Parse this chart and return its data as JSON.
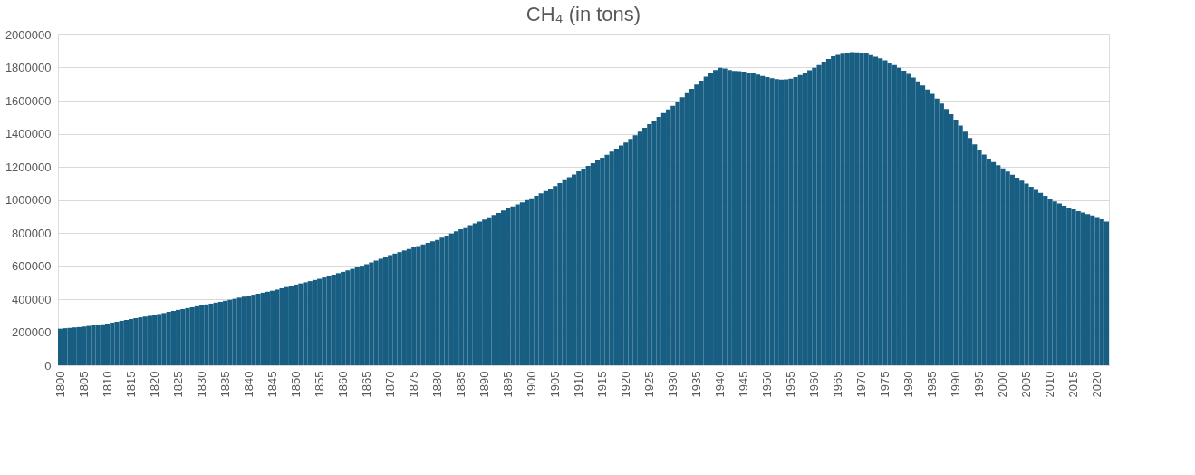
{
  "chart_data": {
    "type": "bar",
    "title": "CH₄ (in tons)",
    "categories": [
      "1800",
      null,
      null,
      null,
      null,
      "1805",
      null,
      null,
      null,
      null,
      "1810",
      null,
      null,
      null,
      null,
      "1815",
      null,
      null,
      null,
      null,
      "1820",
      null,
      null,
      null,
      null,
      "1825",
      null,
      null,
      null,
      null,
      "1830",
      null,
      null,
      null,
      null,
      "1835",
      null,
      null,
      null,
      null,
      "1840",
      null,
      null,
      null,
      null,
      "1845",
      null,
      null,
      null,
      null,
      "1850",
      null,
      null,
      null,
      null,
      "1855",
      null,
      null,
      null,
      null,
      "1860",
      null,
      null,
      null,
      null,
      "1865",
      null,
      null,
      null,
      null,
      "1870",
      null,
      null,
      null,
      null,
      "1875",
      null,
      null,
      null,
      null,
      "1880",
      null,
      null,
      null,
      null,
      "1885",
      null,
      null,
      null,
      null,
      "1890",
      null,
      null,
      null,
      null,
      "1895",
      null,
      null,
      null,
      null,
      "1900",
      null,
      null,
      null,
      null,
      "1905",
      null,
      null,
      null,
      null,
      "1910",
      null,
      null,
      null,
      null,
      "1915",
      null,
      null,
      null,
      null,
      "1920",
      null,
      null,
      null,
      null,
      "1925",
      null,
      null,
      null,
      null,
      "1930",
      null,
      null,
      null,
      null,
      "1935",
      null,
      null,
      null,
      null,
      "1940",
      null,
      null,
      null,
      null,
      "1945",
      null,
      null,
      null,
      null,
      "1950",
      null,
      null,
      null,
      null,
      "1955",
      null,
      null,
      null,
      null,
      "1960",
      null,
      null,
      null,
      null,
      "1965",
      null,
      null,
      null,
      null,
      "1970",
      null,
      null,
      null,
      null,
      "1975",
      null,
      null,
      null,
      null,
      "1980",
      null,
      null,
      null,
      null,
      "1985",
      null,
      null,
      null,
      null,
      "1990",
      null,
      null,
      null,
      null,
      "1995",
      null,
      null,
      null,
      null,
      "2000",
      null,
      null,
      null,
      null,
      "2005",
      null,
      null,
      null,
      null,
      "2010",
      null,
      null,
      null,
      null,
      "2015",
      null,
      null,
      null,
      null,
      "2020",
      null,
      null
    ],
    "values": [
      221000,
      224000,
      226000,
      229000,
      231000,
      234000,
      238000,
      241000,
      245000,
      248000,
      252000,
      258000,
      263000,
      269000,
      274000,
      280000,
      285000,
      290000,
      294000,
      299000,
      304000,
      310000,
      316000,
      323000,
      329000,
      335000,
      340000,
      346000,
      351000,
      357000,
      362000,
      368000,
      373000,
      379000,
      384000,
      390000,
      396000,
      402000,
      409000,
      415000,
      421000,
      427000,
      433000,
      439000,
      445000,
      451000,
      458000,
      466000,
      473000,
      481000,
      488000,
      495000,
      502000,
      509000,
      516000,
      523000,
      531000,
      540000,
      548000,
      557000,
      565000,
      574000,
      583000,
      593000,
      602000,
      611000,
      622000,
      633000,
      644000,
      655000,
      666000,
      675000,
      684000,
      694000,
      703000,
      712000,
      721000,
      730000,
      740000,
      749000,
      758000,
      771000,
      784000,
      796000,
      809000,
      822000,
      834000,
      846000,
      857000,
      869000,
      881000,
      894000,
      908000,
      921000,
      935000,
      948000,
      960000,
      973000,
      985000,
      998000,
      1010000,
      1025000,
      1040000,
      1054000,
      1069000,
      1084000,
      1102000,
      1119000,
      1137000,
      1154000,
      1172000,
      1189000,
      1205000,
      1222000,
      1238000,
      1255000,
      1273000,
      1292000,
      1310000,
      1329000,
      1347000,
      1369000,
      1391000,
      1413000,
      1435000,
      1457000,
      1479000,
      1501000,
      1524000,
      1546000,
      1568000,
      1594000,
      1620000,
      1645000,
      1671000,
      1697000,
      1720000,
      1745000,
      1768000,
      1785000,
      1798000,
      1795000,
      1785000,
      1780000,
      1778000,
      1776000,
      1770000,
      1764000,
      1757000,
      1750000,
      1742000,
      1735000,
      1730000,
      1728000,
      1729000,
      1733000,
      1742000,
      1755000,
      1768000,
      1783000,
      1798000,
      1815000,
      1835000,
      1852000,
      1868000,
      1877000,
      1884000,
      1889000,
      1893000,
      1892000,
      1890000,
      1885000,
      1876000,
      1866000,
      1856000,
      1844000,
      1830000,
      1815000,
      1799000,
      1781000,
      1761000,
      1740000,
      1717000,
      1692000,
      1667000,
      1641000,
      1613000,
      1582000,
      1550000,
      1518000,
      1485000,
      1450000,
      1412000,
      1374000,
      1336000,
      1301000,
      1274000,
      1250000,
      1229000,
      1209000,
      1190000,
      1171000,
      1152000,
      1134000,
      1116000,
      1098000,
      1079000,
      1060000,
      1042000,
      1024000,
      1006000,
      991000,
      978000,
      965000,
      953000,
      942000,
      932000,
      923000,
      914000,
      905000,
      896000,
      882000,
      868000
    ],
    "color": "#175e82",
    "ylim": [
      0,
      2000000
    ],
    "yticks": [
      0,
      200000,
      400000,
      600000,
      800000,
      1000000,
      1200000,
      1400000,
      1600000,
      1800000,
      2000000
    ],
    "grid": "y"
  }
}
